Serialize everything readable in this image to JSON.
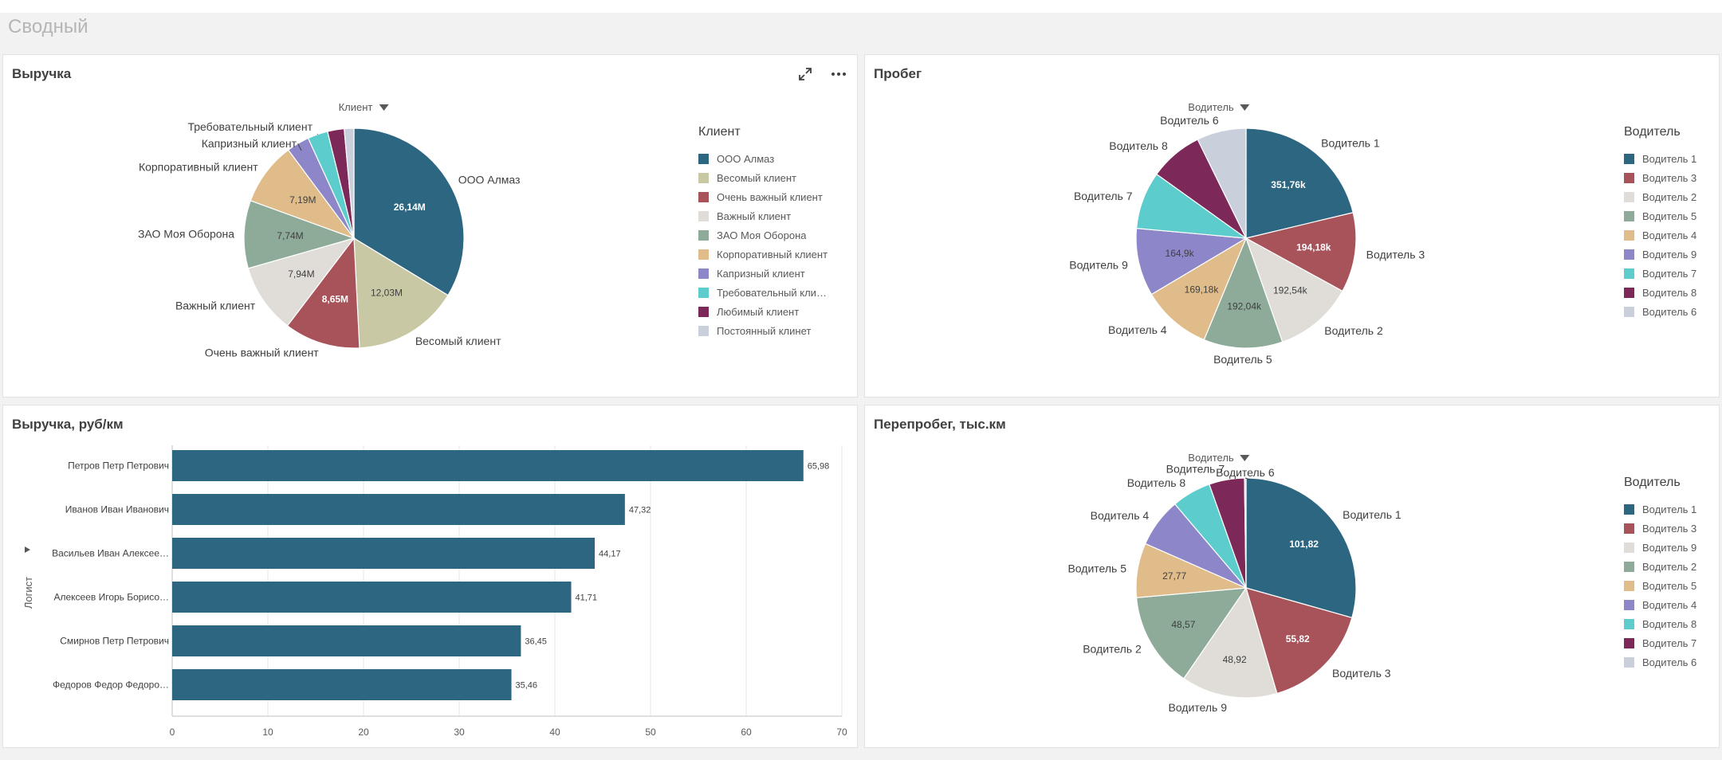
{
  "page": {
    "title": "Сводный"
  },
  "panels": {
    "revenue": {
      "title": "Выручка",
      "dimension": "Клиент",
      "legend_title": "Клиент"
    },
    "mileage": {
      "title": "Пробег",
      "dimension": "Водитель",
      "legend_title": "Водитель"
    },
    "revenue_per_km": {
      "title": "Выручка, руб/км",
      "axis_label": "Логист"
    },
    "overmileage": {
      "title": "Перепробег, тыс.км",
      "dimension": "Водитель",
      "legend_title": "Водитель"
    }
  },
  "icons": {
    "expand": "expand-icon",
    "more": "more-icon",
    "caret": "chevron-down-icon",
    "axis_caret": "triangle-right-icon"
  },
  "chart_data": [
    {
      "type": "pie",
      "title": "Выручка",
      "labels": [
        "ООО Алмаз",
        "Весомый клиент",
        "Очень важный клиент",
        "Важный клиент",
        "ЗАО Моя Оборона",
        "Корпоративный клиент",
        "Капризный клиент",
        "Требовательный клиент",
        "Любимый клиент",
        "Постоянный клинет"
      ],
      "legend_labels": [
        "ООО Алмаз",
        "Весомый клиент",
        "Очень важный клиент",
        "Важный клиент",
        "ЗАО Моя Оборона",
        "Корпоративный клиент",
        "Капризный клиент",
        "Требовательный кли…",
        "Любимый клиент",
        "Постоянный клинет"
      ],
      "values": [
        26.14,
        12.03,
        8.65,
        7.94,
        7.74,
        7.19,
        2.6,
        2.3,
        1.9,
        1.1
      ],
      "value_labels": [
        "26,14M",
        "12,03M",
        "8,65M",
        "7,94M",
        "7,74M",
        "7,19M",
        "",
        "",
        "",
        ""
      ],
      "outer_labels": [
        "ООО Алмаз",
        "Весомый клиент",
        "Очень важный клиент",
        "Важный клиент",
        "ЗАО Моя Оборона",
        "Корпоративный клиент",
        "Капризный клиент",
        "Требовательный клиент",
        "",
        ""
      ],
      "colors": [
        "#2d6680",
        "#c9c8a5",
        "#a8535a",
        "#e0ddd8",
        "#8dab98",
        "#dfbc8a",
        "#8d86c9",
        "#5ccccc",
        "#7c2858",
        "#c9d0dc"
      ],
      "legend": "right"
    },
    {
      "type": "pie",
      "title": "Пробег",
      "labels": [
        "Водитель 1",
        "Водитель 3",
        "Водитель 2",
        "Водитель 5",
        "Водитель 4",
        "Водитель 9",
        "Водитель 7",
        "Водитель 8",
        "Водитель 6"
      ],
      "values": [
        351.76,
        194.18,
        192.54,
        192.04,
        169.18,
        164.9,
        140,
        130,
        120
      ],
      "value_labels": [
        "351,76k",
        "194,18k",
        "192,54k",
        "192,04k",
        "169,18k",
        "164,9k",
        "",
        "",
        ""
      ],
      "colors": [
        "#2d6680",
        "#a8535a",
        "#e0ddd8",
        "#8dab98",
        "#dfbc8a",
        "#8d86c9",
        "#5ccccc",
        "#7c2858",
        "#c9d0dc"
      ],
      "legend": "right"
    },
    {
      "type": "bar",
      "orientation": "horizontal",
      "title": "Выручка, руб/км",
      "ylabel": "Логист",
      "categories": [
        "Петров Петр Петрович",
        "Иванов Иван Иванович",
        "Васильев Иван Алексее…",
        "Алексеев Игорь Борисо…",
        "Смирнов Петр Петрович",
        "Федоров Федор Федоро…"
      ],
      "values": [
        65.98,
        47.32,
        44.17,
        41.71,
        36.45,
        35.46
      ],
      "value_labels": [
        "65,98",
        "47,32",
        "44,17",
        "41,71",
        "36,45",
        "35,46"
      ],
      "xlim": [
        0,
        70
      ],
      "xticks": [
        "0",
        "10",
        "20",
        "30",
        "40",
        "50",
        "60",
        "70"
      ],
      "color": "#2d6680",
      "grid": true
    },
    {
      "type": "pie",
      "title": "Перепробег, тыс.км",
      "labels": [
        "Водитель 1",
        "Водитель 3",
        "Водитель 9",
        "Водитель 2",
        "Водитель 5",
        "Водитель 4",
        "Водитель 8",
        "Водитель 7",
        "Водитель 6"
      ],
      "values": [
        101.82,
        55.82,
        48.92,
        48.57,
        27.77,
        25,
        20,
        18,
        0.8
      ],
      "value_labels": [
        "101,82",
        "55,82",
        "48,92",
        "48,57",
        "27,77",
        "",
        "",
        "",
        ""
      ],
      "colors": [
        "#2d6680",
        "#a8535a",
        "#e0ddd8",
        "#8dab98",
        "#dfbc8a",
        "#8d86c9",
        "#5ccccc",
        "#7c2858",
        "#c9d0dc"
      ],
      "legend": "right"
    }
  ]
}
